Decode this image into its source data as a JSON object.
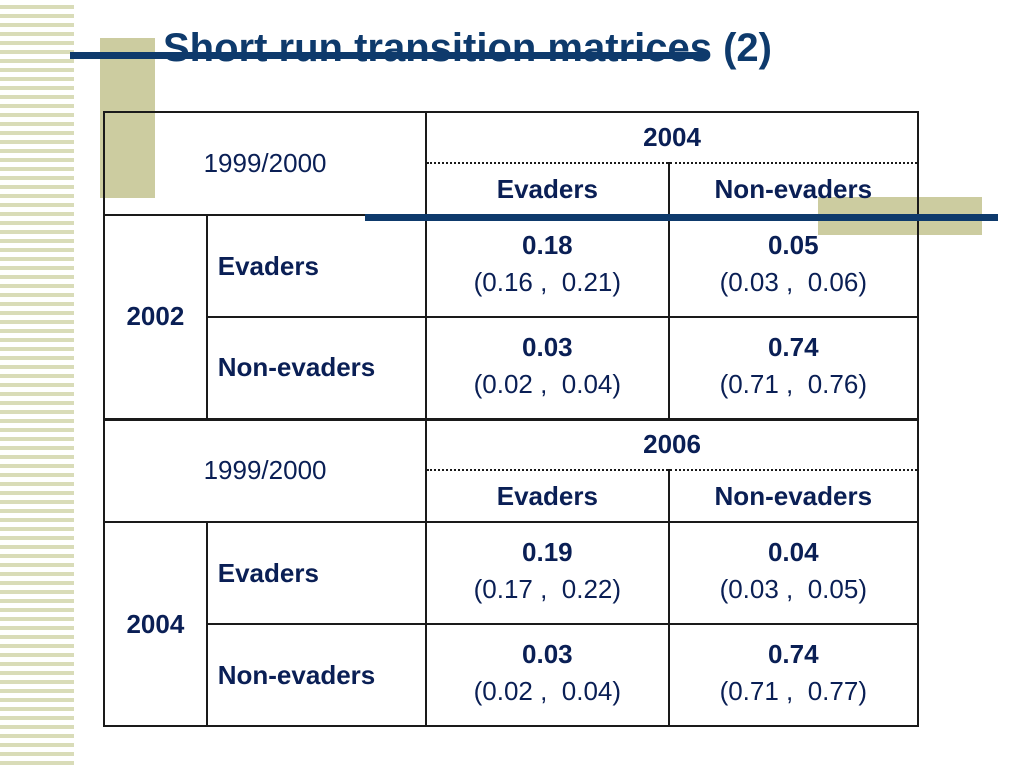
{
  "title": "Short run transition matrices (2)",
  "panels": [
    {
      "origin": "1999/2000",
      "target_year": "2004",
      "col_headers": [
        "Evaders",
        "Non-evaders"
      ],
      "row_year": "2002",
      "rows": [
        {
          "label": "Evaders",
          "cells": [
            {
              "value": "0.18",
              "ci": "(0.16 ,  0.21)"
            },
            {
              "value": "0.05",
              "ci": "(0.03 ,  0.06)"
            }
          ]
        },
        {
          "label": "Non-evaders",
          "cells": [
            {
              "value": "0.03",
              "ci": "(0.02 ,  0.04)"
            },
            {
              "value": "0.74",
              "ci": "(0.71 ,  0.76)"
            }
          ]
        }
      ]
    },
    {
      "origin": "1999/2000",
      "target_year": "2006",
      "col_headers": [
        "Evaders",
        "Non-evaders"
      ],
      "row_year": "2004",
      "rows": [
        {
          "label": "Evaders",
          "cells": [
            {
              "value": "0.19",
              "ci": "(0.17 ,  0.22)"
            },
            {
              "value": "0.04",
              "ci": "(0.03 ,  0.05)"
            }
          ]
        },
        {
          "label": "Non-evaders",
          "cells": [
            {
              "value": "0.03",
              "ci": "(0.02 ,  0.04)"
            },
            {
              "value": "0.74",
              "ci": "(0.71 ,  0.77)"
            }
          ]
        }
      ]
    }
  ]
}
